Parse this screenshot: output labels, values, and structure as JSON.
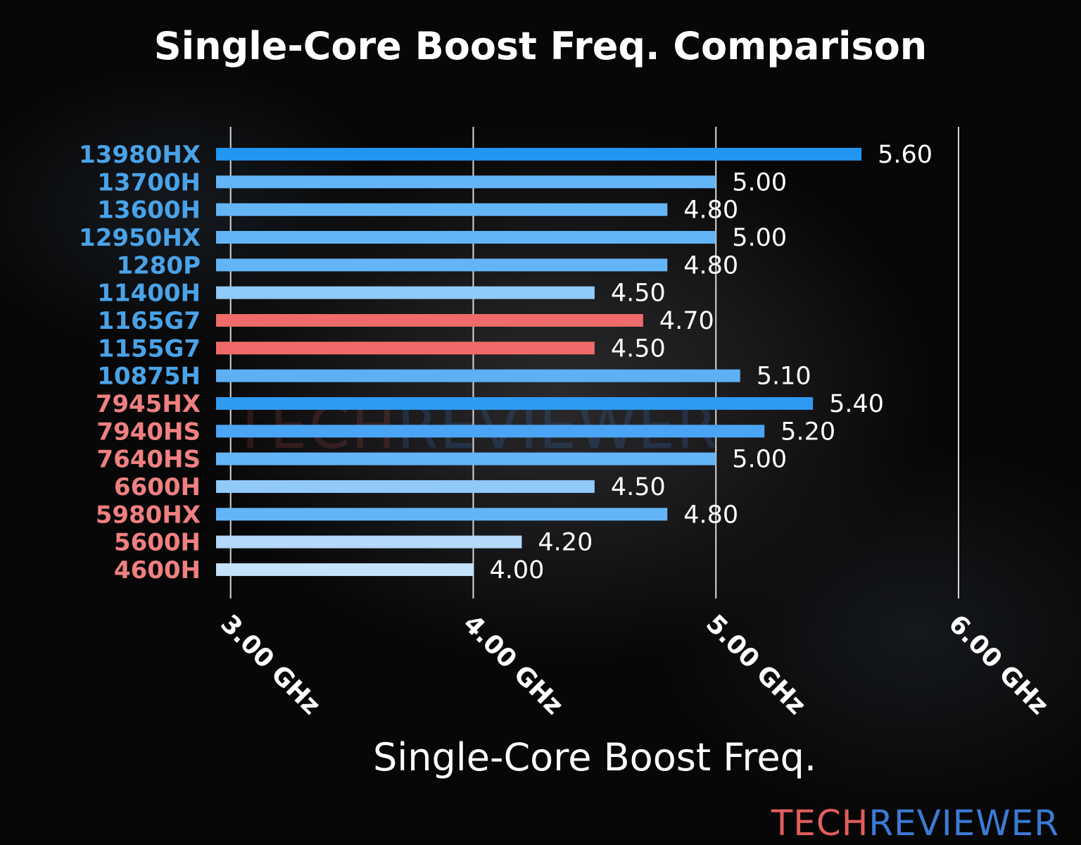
{
  "colors": {
    "intel_label": "#4aa3e8",
    "amd_label": "#f08080",
    "red_bar": "#f06a6a",
    "logo_tech": "#e35d5d",
    "logo_reviewer": "#3a7bd5"
  },
  "logo": {
    "tech": "TECH",
    "reviewer": "REVIEWER"
  },
  "chart_data": {
    "type": "bar",
    "orientation": "horizontal",
    "title": "Single-Core Boost Freq. Comparison",
    "xlabel": "Single-Core Boost Freq.",
    "xlim": [
      2.94,
      6.0
    ],
    "xticks": [
      3.0,
      4.0,
      5.0,
      6.0
    ],
    "xtick_labels": [
      "3.00 GHz",
      "4.00 GHz",
      "5.00 GHz",
      "6.00 GHz"
    ],
    "grid": true,
    "categories": [
      "13980HX",
      "13700H",
      "13600H",
      "12950HX",
      "1280P",
      "11400H",
      "1165G7",
      "1155G7",
      "10875H",
      "7945HX",
      "7940HS",
      "7640HS",
      "6600H",
      "5980HX",
      "5600H",
      "4600H"
    ],
    "values": [
      5.6,
      5.0,
      4.8,
      5.0,
      4.8,
      4.5,
      4.7,
      4.5,
      5.1,
      5.4,
      5.2,
      5.0,
      4.5,
      4.8,
      4.2,
      4.0
    ],
    "value_labels": [
      "5.60",
      "5.00",
      "4.80",
      "5.00",
      "4.80",
      "4.50",
      "4.70",
      "4.50",
      "5.10",
      "5.40",
      "5.20",
      "5.00",
      "4.50",
      "4.80",
      "4.20",
      "4.00"
    ],
    "label_brand": [
      "intel",
      "intel",
      "intel",
      "intel",
      "intel",
      "intel",
      "intel",
      "intel",
      "intel",
      "amd",
      "amd",
      "amd",
      "amd",
      "amd",
      "amd",
      "amd"
    ],
    "bar_colors": [
      "#2196f3",
      "#64b5f6",
      "#64b5f6",
      "#64b5f6",
      "#64b5f6",
      "#90caf9",
      "#f06a6a",
      "#f06a6a",
      "#5eb0f5",
      "#2f9af2",
      "#4aa6f4",
      "#64b5f6",
      "#90caf9",
      "#64b5f6",
      "#b3d9fb",
      "#c5e2fc"
    ]
  }
}
